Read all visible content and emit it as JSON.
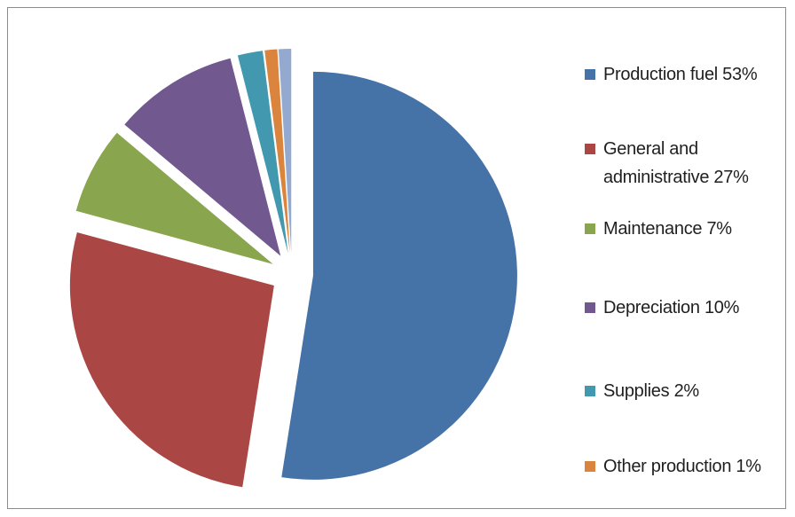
{
  "chart_data": {
    "type": "pie",
    "title": "",
    "legend_position": "right",
    "slices": [
      {
        "label": "Production fuel 53%",
        "value": 53,
        "color": "#4572a7"
      },
      {
        "label": "General and administrative 27%",
        "value": 27,
        "color": "#aa4643"
      },
      {
        "label": "Maintenance 7%",
        "value": 7,
        "color": "#89a54e"
      },
      {
        "label": "Depreciation 10%",
        "value": 10,
        "color": "#71588f"
      },
      {
        "label": "Supplies 2%",
        "value": 2,
        "color": "#4198af"
      },
      {
        "label": "Other production 1%",
        "value": 1,
        "color": "#db843d"
      },
      {
        "label": "",
        "value": 1,
        "color": "#93a9cf"
      }
    ]
  }
}
